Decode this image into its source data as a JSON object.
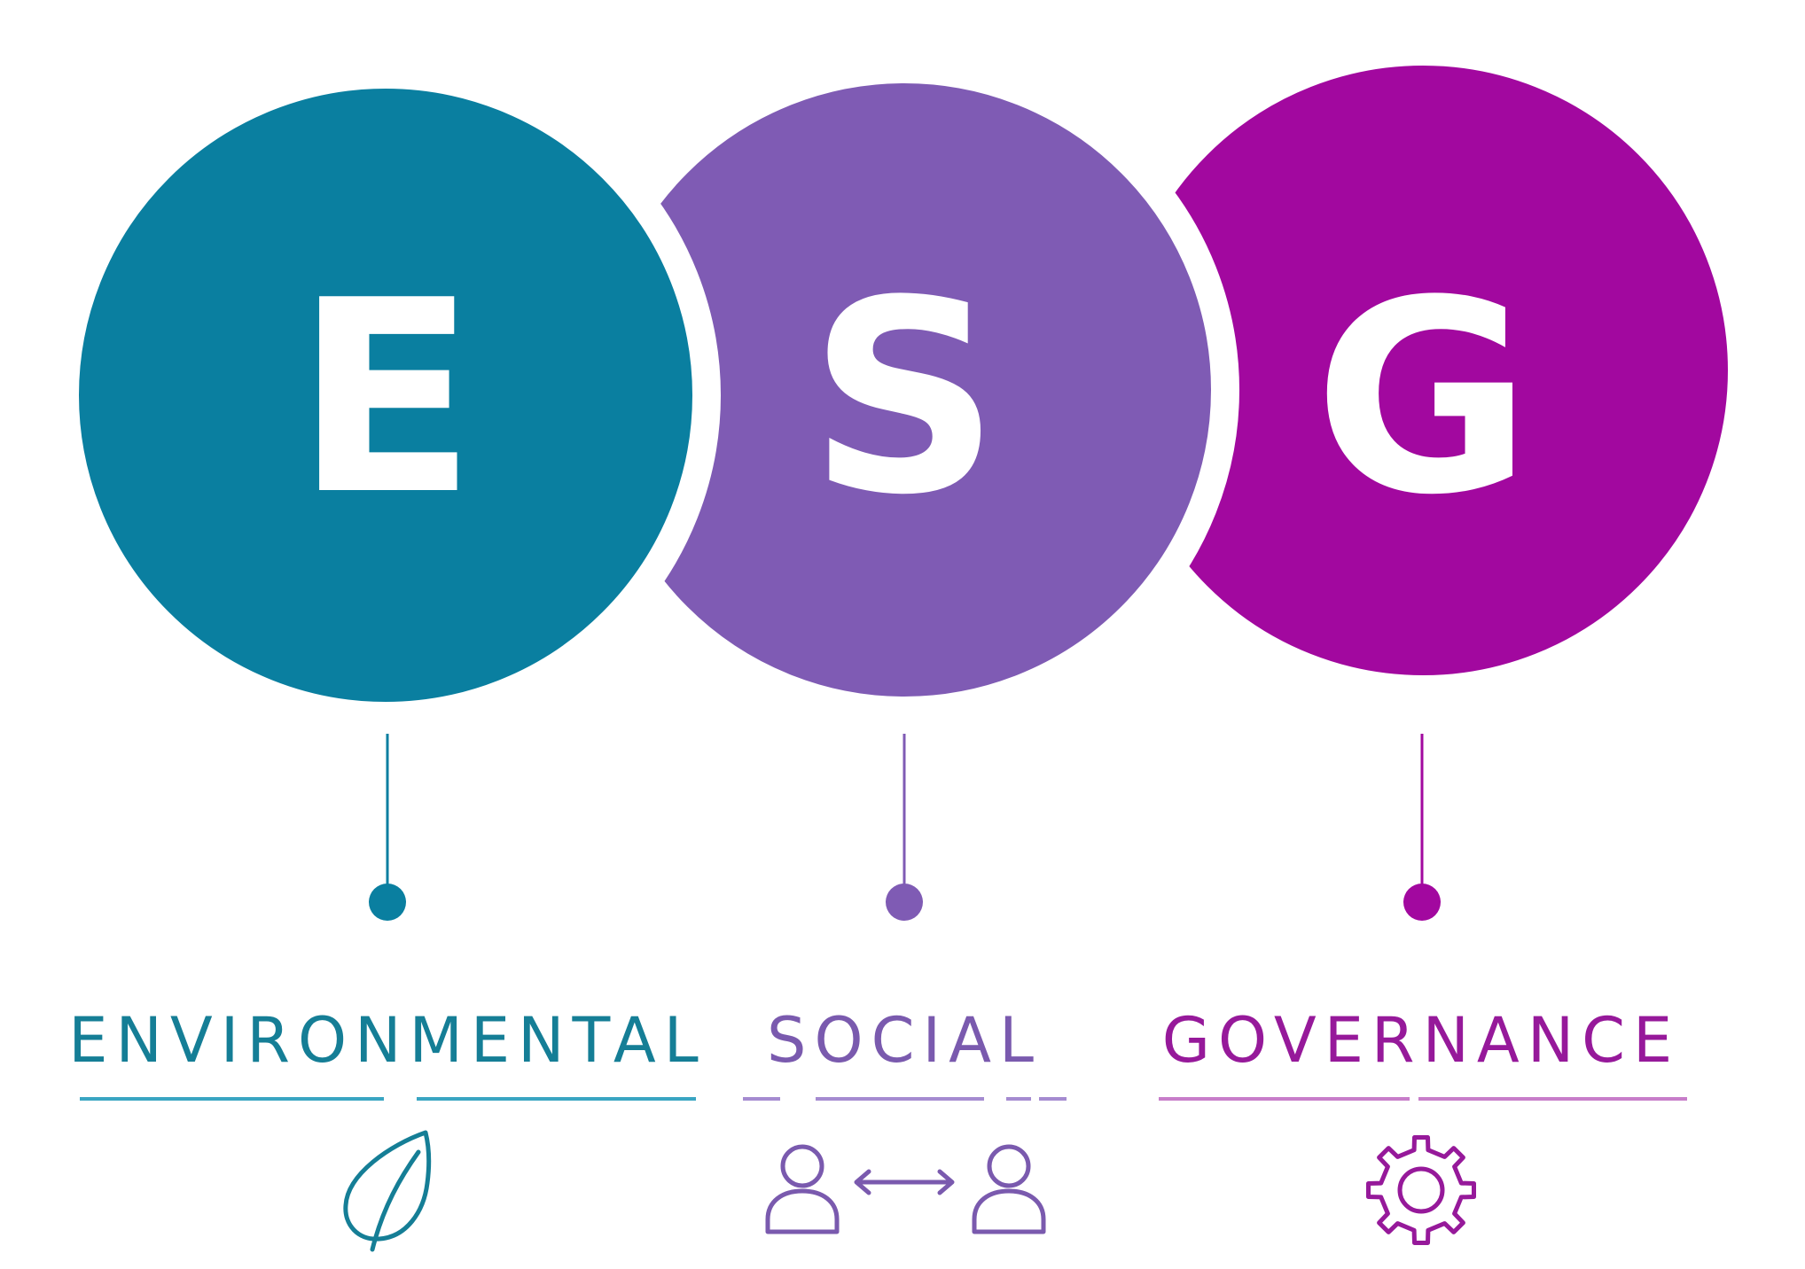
{
  "pillars": [
    {
      "letter": "E",
      "label": "ENVIRONMENTAL",
      "color": "#0a7fa0",
      "label_color": "#157e96",
      "underline_color": "#39a5c2",
      "icon": "leaf-icon"
    },
    {
      "letter": "S",
      "label": "SOCIAL",
      "color": "#7f5bb4",
      "label_color": "#7a5aae",
      "underline_color": "#a58bd0",
      "icon": "people-exchange-icon"
    },
    {
      "letter": "G",
      "label": "GOVERNANCE",
      "color": "#a2089f",
      "label_color": "#96199a",
      "underline_color": "#c77dc9",
      "icon": "gear-icon"
    }
  ],
  "background": "#ffffff"
}
